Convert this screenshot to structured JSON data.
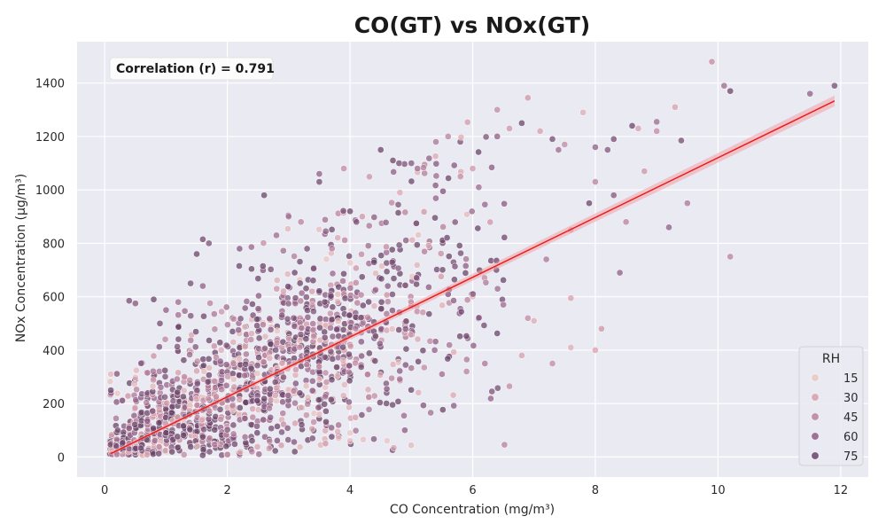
{
  "chart_data": {
    "type": "scatter",
    "title": "CO(GT) vs NOx(GT)",
    "xlabel": "CO Concentration (mg/m³)",
    "ylabel": "NOx Concentration (μg/m³)",
    "xlim": [
      -0.45,
      12.45
    ],
    "ylim": [
      -75,
      1555
    ],
    "x_ticks": [
      0,
      2,
      4,
      6,
      8,
      10,
      12
    ],
    "y_ticks": [
      0,
      200,
      400,
      600,
      800,
      1000,
      1200,
      1400
    ],
    "grid": true,
    "background_color": "#eaeaf2",
    "hue": {
      "name": "RH",
      "legend_values": [
        15,
        30,
        45,
        60,
        75
      ],
      "legend_colors": [
        "#ebc5c2",
        "#d79fad",
        "#b8819c",
        "#8f5d87",
        "#6a4468"
      ],
      "range": [
        9,
        88
      ]
    },
    "legend_position": "lower-right",
    "annotation": "Correlation (r) = 0.791",
    "correlation_r": 0.791,
    "regression": {
      "slope": 111.9,
      "intercept": 1.5,
      "x_range": [
        0.1,
        11.9
      ],
      "color": "#e8201c",
      "band_color": "#f2a0aa"
    },
    "points": [
      [
        0.4,
        585,
        70
      ],
      [
        0.5,
        575,
        65
      ],
      [
        0.8,
        590,
        75
      ],
      [
        0.9,
        500,
        72
      ],
      [
        1.0,
        550,
        60
      ],
      [
        1.2,
        580,
        55
      ],
      [
        1.4,
        650,
        70
      ],
      [
        1.5,
        760,
        75
      ],
      [
        1.6,
        815,
        72
      ],
      [
        1.7,
        800,
        68
      ],
      [
        1.3,
        300,
        45
      ],
      [
        1.6,
        640,
        60
      ],
      [
        2.2,
        780,
        65
      ],
      [
        2.6,
        980,
        75
      ],
      [
        2.8,
        830,
        55
      ],
      [
        3.0,
        900,
        50
      ],
      [
        3.2,
        880,
        45
      ],
      [
        3.3,
        780,
        70
      ],
      [
        3.5,
        1060,
        60
      ],
      [
        3.5,
        1030,
        72
      ],
      [
        3.9,
        1080,
        40
      ],
      [
        4.0,
        920,
        75
      ],
      [
        4.2,
        900,
        35
      ],
      [
        4.5,
        1150,
        78
      ],
      [
        4.7,
        1110,
        75
      ],
      [
        4.8,
        1100,
        70
      ],
      [
        5.0,
        1100,
        65
      ],
      [
        5.1,
        1080,
        55
      ],
      [
        5.4,
        1180,
        50
      ],
      [
        5.6,
        1200,
        45
      ],
      [
        5.8,
        1050,
        40
      ],
      [
        6.0,
        1080,
        35
      ],
      [
        6.1,
        1010,
        55
      ],
      [
        6.4,
        1300,
        40
      ],
      [
        6.4,
        1200,
        60
      ],
      [
        6.6,
        1230,
        35
      ],
      [
        6.8,
        1250,
        75
      ],
      [
        6.9,
        1345,
        35
      ],
      [
        7.1,
        1220,
        30
      ],
      [
        7.3,
        1190,
        70
      ],
      [
        7.4,
        1150,
        55
      ],
      [
        7.5,
        1170,
        40
      ],
      [
        7.8,
        1290,
        25
      ],
      [
        8.0,
        1030,
        45
      ],
      [
        8.0,
        1160,
        60
      ],
      [
        8.2,
        1150,
        65
      ],
      [
        8.3,
        1190,
        70
      ],
      [
        8.6,
        1240,
        75
      ],
      [
        8.7,
        1230,
        30
      ],
      [
        8.8,
        1070,
        35
      ],
      [
        9.0,
        1220,
        40
      ],
      [
        9.0,
        1255,
        55
      ],
      [
        9.3,
        1310,
        30
      ],
      [
        9.4,
        1185,
        70
      ],
      [
        9.5,
        950,
        50
      ],
      [
        9.9,
        1480,
        40
      ],
      [
        10.1,
        1390,
        55
      ],
      [
        10.2,
        1370,
        75
      ],
      [
        10.2,
        750,
        45
      ],
      [
        11.5,
        1360,
        60
      ],
      [
        11.9,
        1390,
        70
      ],
      [
        7.6,
        410,
        25
      ],
      [
        8.0,
        400,
        30
      ],
      [
        8.1,
        480,
        35
      ],
      [
        7.6,
        595,
        30
      ],
      [
        6.9,
        520,
        40
      ],
      [
        6.5,
        570,
        55
      ],
      [
        7.0,
        510,
        25
      ],
      [
        8.4,
        690,
        60
      ],
      [
        8.5,
        880,
        45
      ],
      [
        9.2,
        860,
        60
      ],
      [
        7.2,
        740,
        50
      ],
      [
        7.6,
        850,
        35
      ],
      [
        7.9,
        950,
        75
      ],
      [
        8.3,
        980,
        65
      ],
      [
        6.8,
        380,
        30
      ],
      [
        7.3,
        350,
        40
      ],
      [
        6.2,
        350,
        50
      ],
      [
        5.9,
        320,
        45
      ],
      [
        5.5,
        310,
        55
      ],
      [
        6.6,
        265,
        40
      ],
      [
        4.6,
        255,
        65
      ],
      [
        4.0,
        60,
        20
      ],
      [
        4.0,
        90,
        15
      ],
      [
        3.8,
        95,
        25
      ],
      [
        3.5,
        160,
        20
      ],
      [
        3.6,
        50,
        35
      ],
      [
        2.4,
        20,
        45
      ],
      [
        0.1,
        310,
        20
      ],
      [
        0.1,
        250,
        75
      ]
    ]
  }
}
